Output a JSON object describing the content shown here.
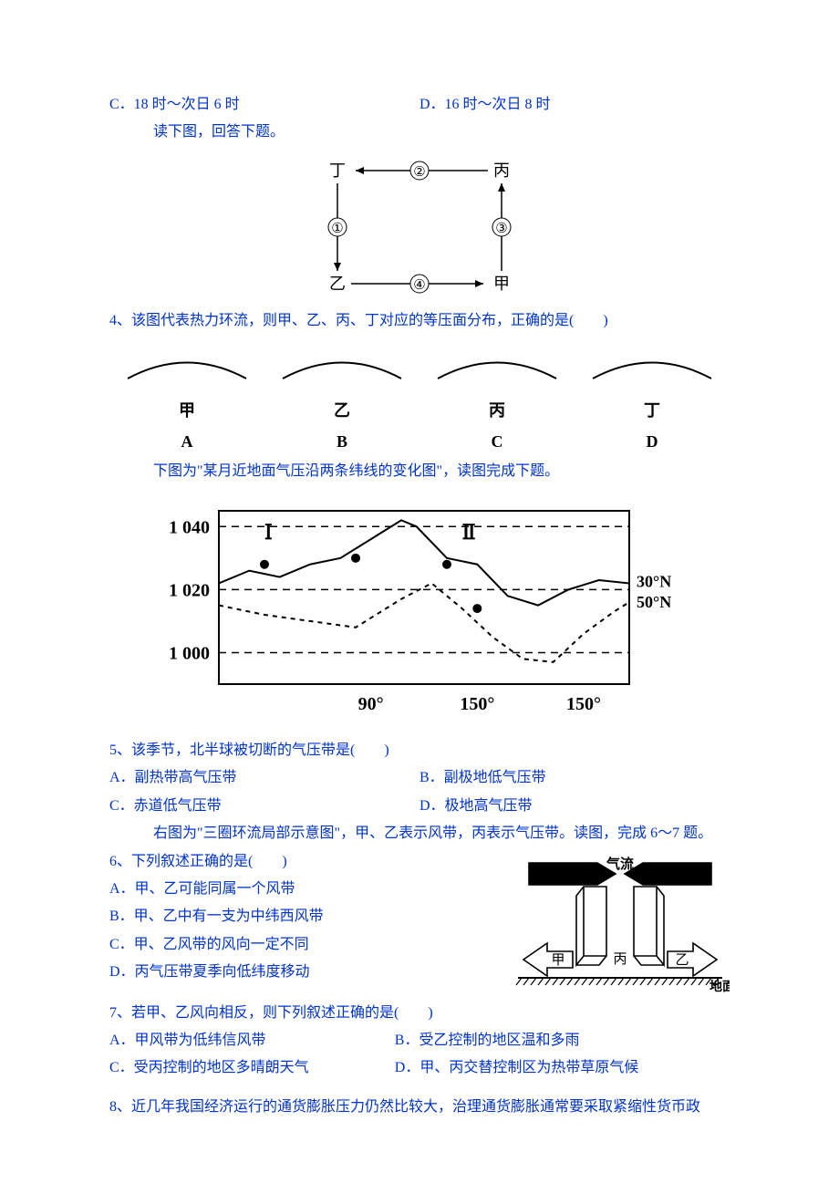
{
  "q3_options": {
    "c": "C．18 时～次日 6 时",
    "d": "D．16 时～次日 8 时"
  },
  "prompt1": "读下图，回答下题。",
  "diagram1": {
    "nodes": {
      "tl": "丁",
      "tr": "丙",
      "bl": "乙",
      "br": "甲"
    },
    "edges": {
      "top": "②",
      "left": "①",
      "right": "③",
      "bottom": "④"
    },
    "stroke": "#000000",
    "fontsize": 16
  },
  "q4": {
    "stem": "4、该图代表热力环流，则甲、乙、丙、丁对应的等压面分布，正确的是(　　)",
    "choices": [
      {
        "cn": "甲",
        "en": "A"
      },
      {
        "cn": "乙",
        "en": "B"
      },
      {
        "cn": "丙",
        "en": "C"
      },
      {
        "cn": "丁",
        "en": "D"
      }
    ],
    "arc_stroke": "#000000"
  },
  "prompt2": "下图为\"某月近地面气压沿两条纬线的变化图\"，读图完成下题。",
  "chart": {
    "type": "line",
    "ylim": [
      990,
      1045
    ],
    "yticks": [
      1000,
      1020,
      1040
    ],
    "xticks": [
      "90°",
      "150°",
      "150°"
    ],
    "grid_color": "#000000",
    "background": "#ffffff",
    "series": [
      {
        "name": "I",
        "label": "Ⅰ",
        "stroke": "#000000",
        "dash": "none",
        "width": 2,
        "points": [
          [
            0,
            1022
          ],
          [
            40,
            1026
          ],
          [
            80,
            1024
          ],
          [
            120,
            1028
          ],
          [
            160,
            1030
          ],
          [
            200,
            1036
          ],
          [
            240,
            1042
          ],
          [
            260,
            1040
          ],
          [
            300,
            1030
          ],
          [
            340,
            1028
          ],
          [
            380,
            1018
          ],
          [
            420,
            1015
          ],
          [
            460,
            1020
          ],
          [
            500,
            1023
          ],
          [
            540,
            1022
          ]
        ]
      },
      {
        "name": "II",
        "label": "Ⅱ",
        "stroke": "#000000",
        "dash": "5,5",
        "width": 2,
        "points": [
          [
            0,
            1015
          ],
          [
            60,
            1012
          ],
          [
            120,
            1010
          ],
          [
            180,
            1008
          ],
          [
            240,
            1017
          ],
          [
            280,
            1022
          ],
          [
            320,
            1014
          ],
          [
            360,
            1005
          ],
          [
            400,
            998
          ],
          [
            440,
            997
          ],
          [
            480,
            1006
          ],
          [
            520,
            1013
          ],
          [
            540,
            1016
          ]
        ]
      }
    ],
    "markers": [
      [
        60,
        1028
      ],
      [
        180,
        1030
      ],
      [
        300,
        1028
      ],
      [
        340,
        1014
      ]
    ],
    "right_labels": [
      "30°N",
      "50°N"
    ],
    "label_I": "Ⅰ",
    "label_II": "Ⅱ",
    "axis_color": "#000000",
    "font": "bold 20px serif"
  },
  "q5": {
    "stem": "5、该季节，北半球被切断的气压带是(　　)",
    "a": "A．副热带高气压带",
    "b": "B．副极地低气压带",
    "c": "C．赤道低气压带",
    "d": "D．极地高气压带"
  },
  "prompt3": "右图为\"三圈环流局部示意图\"，甲、乙表示风带，丙表示气压带。读图，完成 6～7 题。",
  "diagram3": {
    "labels": {
      "flow": "气流",
      "left": "甲",
      "mid": "丙",
      "right": "乙",
      "ground": "地面"
    },
    "stroke": "#000000",
    "fill": "#ffffff"
  },
  "q6": {
    "stem": "6、下列叙述正确的是(　　)",
    "a": "A．甲、乙可能同属一个风带",
    "b": "B．甲、乙中有一支为中纬西风带",
    "c": "C．甲、乙风带的风向一定不同",
    "d": "D．丙气压带夏季向低纬度移动"
  },
  "q7": {
    "stem": "7、若甲、乙风向相反，则下列叙述正确的是(　　)",
    "a": "A．甲风带为低纬信风带",
    "b": "B．受乙控制的地区温和多雨",
    "c": "C．受丙控制的地区多晴朗天气",
    "d": "D．甲、丙交替控制区为热带草原气候"
  },
  "q8": "8、近几年我国经济运行的通货膨胀压力仍然比较大，治理通货膨胀通常要采取紧缩性货币政"
}
